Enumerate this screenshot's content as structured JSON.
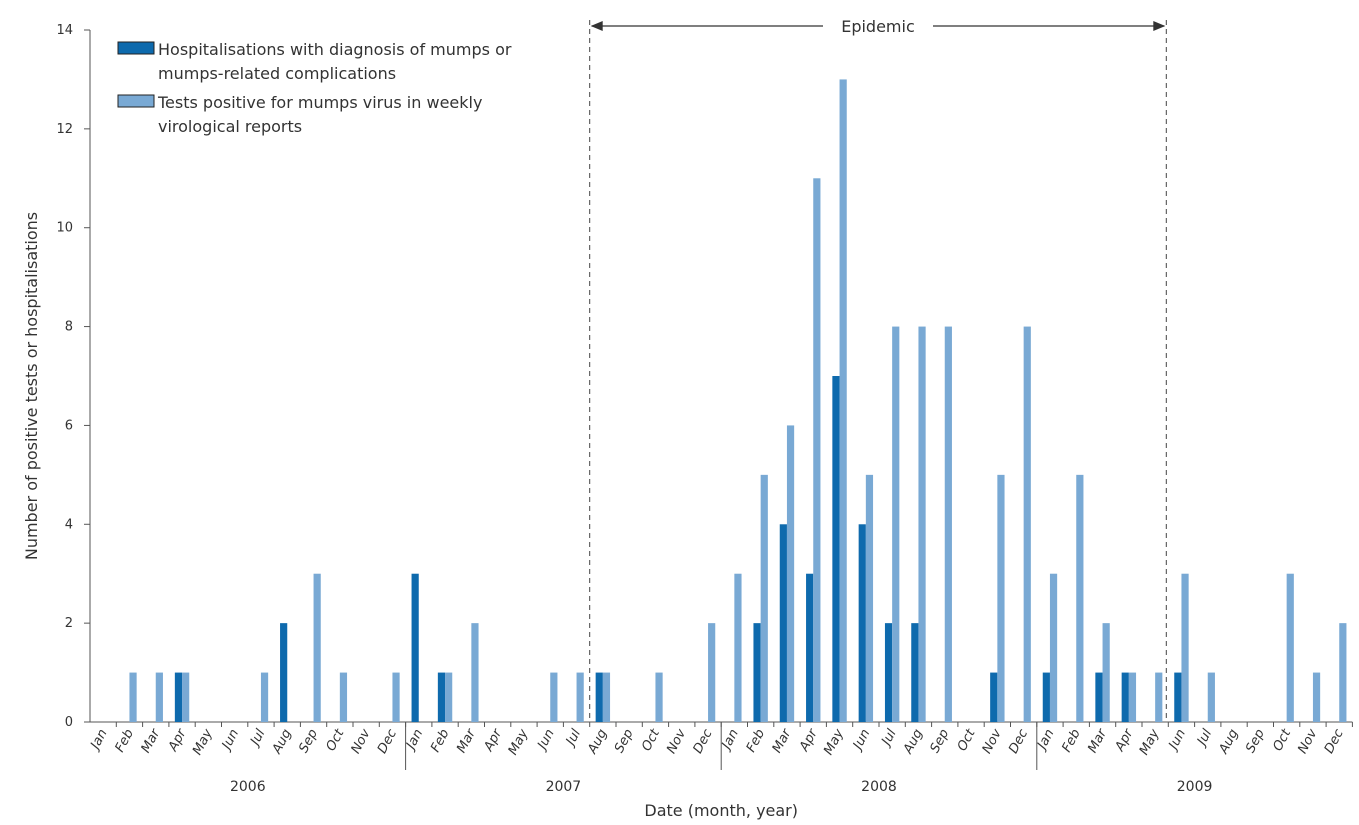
{
  "chart_data": {
    "type": "bar",
    "xlabel": "Date (month, year)",
    "ylabel": "Number of positive tests or hospitalisations",
    "ylim": [
      0,
      14
    ],
    "yticks": [
      0,
      2,
      4,
      6,
      8,
      10,
      12,
      14
    ],
    "grid": false,
    "legend_position": "top-left",
    "years": [
      {
        "label": "2006",
        "months": [
          "Jan",
          "Feb",
          "Mar",
          "Apr",
          "May",
          "Jun",
          "Jul",
          "Aug",
          "Sep",
          "Oct",
          "Nov",
          "Dec"
        ]
      },
      {
        "label": "2007",
        "months": [
          "Jan",
          "Feb",
          "Mar",
          "Apr",
          "May",
          "Jun",
          "Jul",
          "Aug",
          "Sep",
          "Oct",
          "Nov",
          "Dec"
        ]
      },
      {
        "label": "2008",
        "months": [
          "Jan",
          "Feb",
          "Mar",
          "Apr",
          "May",
          "Jun",
          "Jul",
          "Aug",
          "Sep",
          "Oct",
          "Nov",
          "Dec"
        ]
      },
      {
        "label": "2009",
        "months": [
          "Jan",
          "Feb",
          "Mar",
          "Apr",
          "May",
          "Jun",
          "Jul",
          "Aug",
          "Sep",
          "Oct",
          "Nov",
          "Dec"
        ]
      }
    ],
    "series": [
      {
        "name": "Hospitalisations with diagnosis of mumps or mumps-related complications",
        "legend_lines": [
          "Hospitalisations with diagnosis of mumps or",
          "mumps-related complications"
        ],
        "color": "#0e6aad",
        "values": [
          0,
          0,
          0,
          1,
          0,
          0,
          0,
          2,
          0,
          0,
          0,
          0,
          3,
          1,
          0,
          0,
          0,
          0,
          0,
          1,
          0,
          0,
          0,
          0,
          0,
          2,
          4,
          3,
          7,
          4,
          2,
          2,
          0,
          0,
          1,
          0,
          1,
          0,
          1,
          1,
          0,
          1,
          0,
          0,
          0,
          0,
          0,
          0
        ]
      },
      {
        "name": "Tests positive for mumps virus in weekly virological reports",
        "legend_lines": [
          "Tests positive for mumps virus in weekly",
          "virological reports"
        ],
        "color": "#79a9d4",
        "values": [
          0,
          1,
          1,
          1,
          0,
          0,
          1,
          0,
          3,
          1,
          0,
          1,
          0,
          1,
          2,
          0,
          0,
          1,
          1,
          1,
          0,
          1,
          0,
          2,
          3,
          5,
          6,
          11,
          13,
          5,
          8,
          8,
          8,
          0,
          5,
          8,
          3,
          5,
          2,
          1,
          1,
          3,
          1,
          0,
          0,
          3,
          1,
          2
        ]
      }
    ],
    "annotations": {
      "epidemic_label": "Epidemic",
      "epidemic_start": "2007-08",
      "epidemic_end": "2009-05"
    }
  }
}
